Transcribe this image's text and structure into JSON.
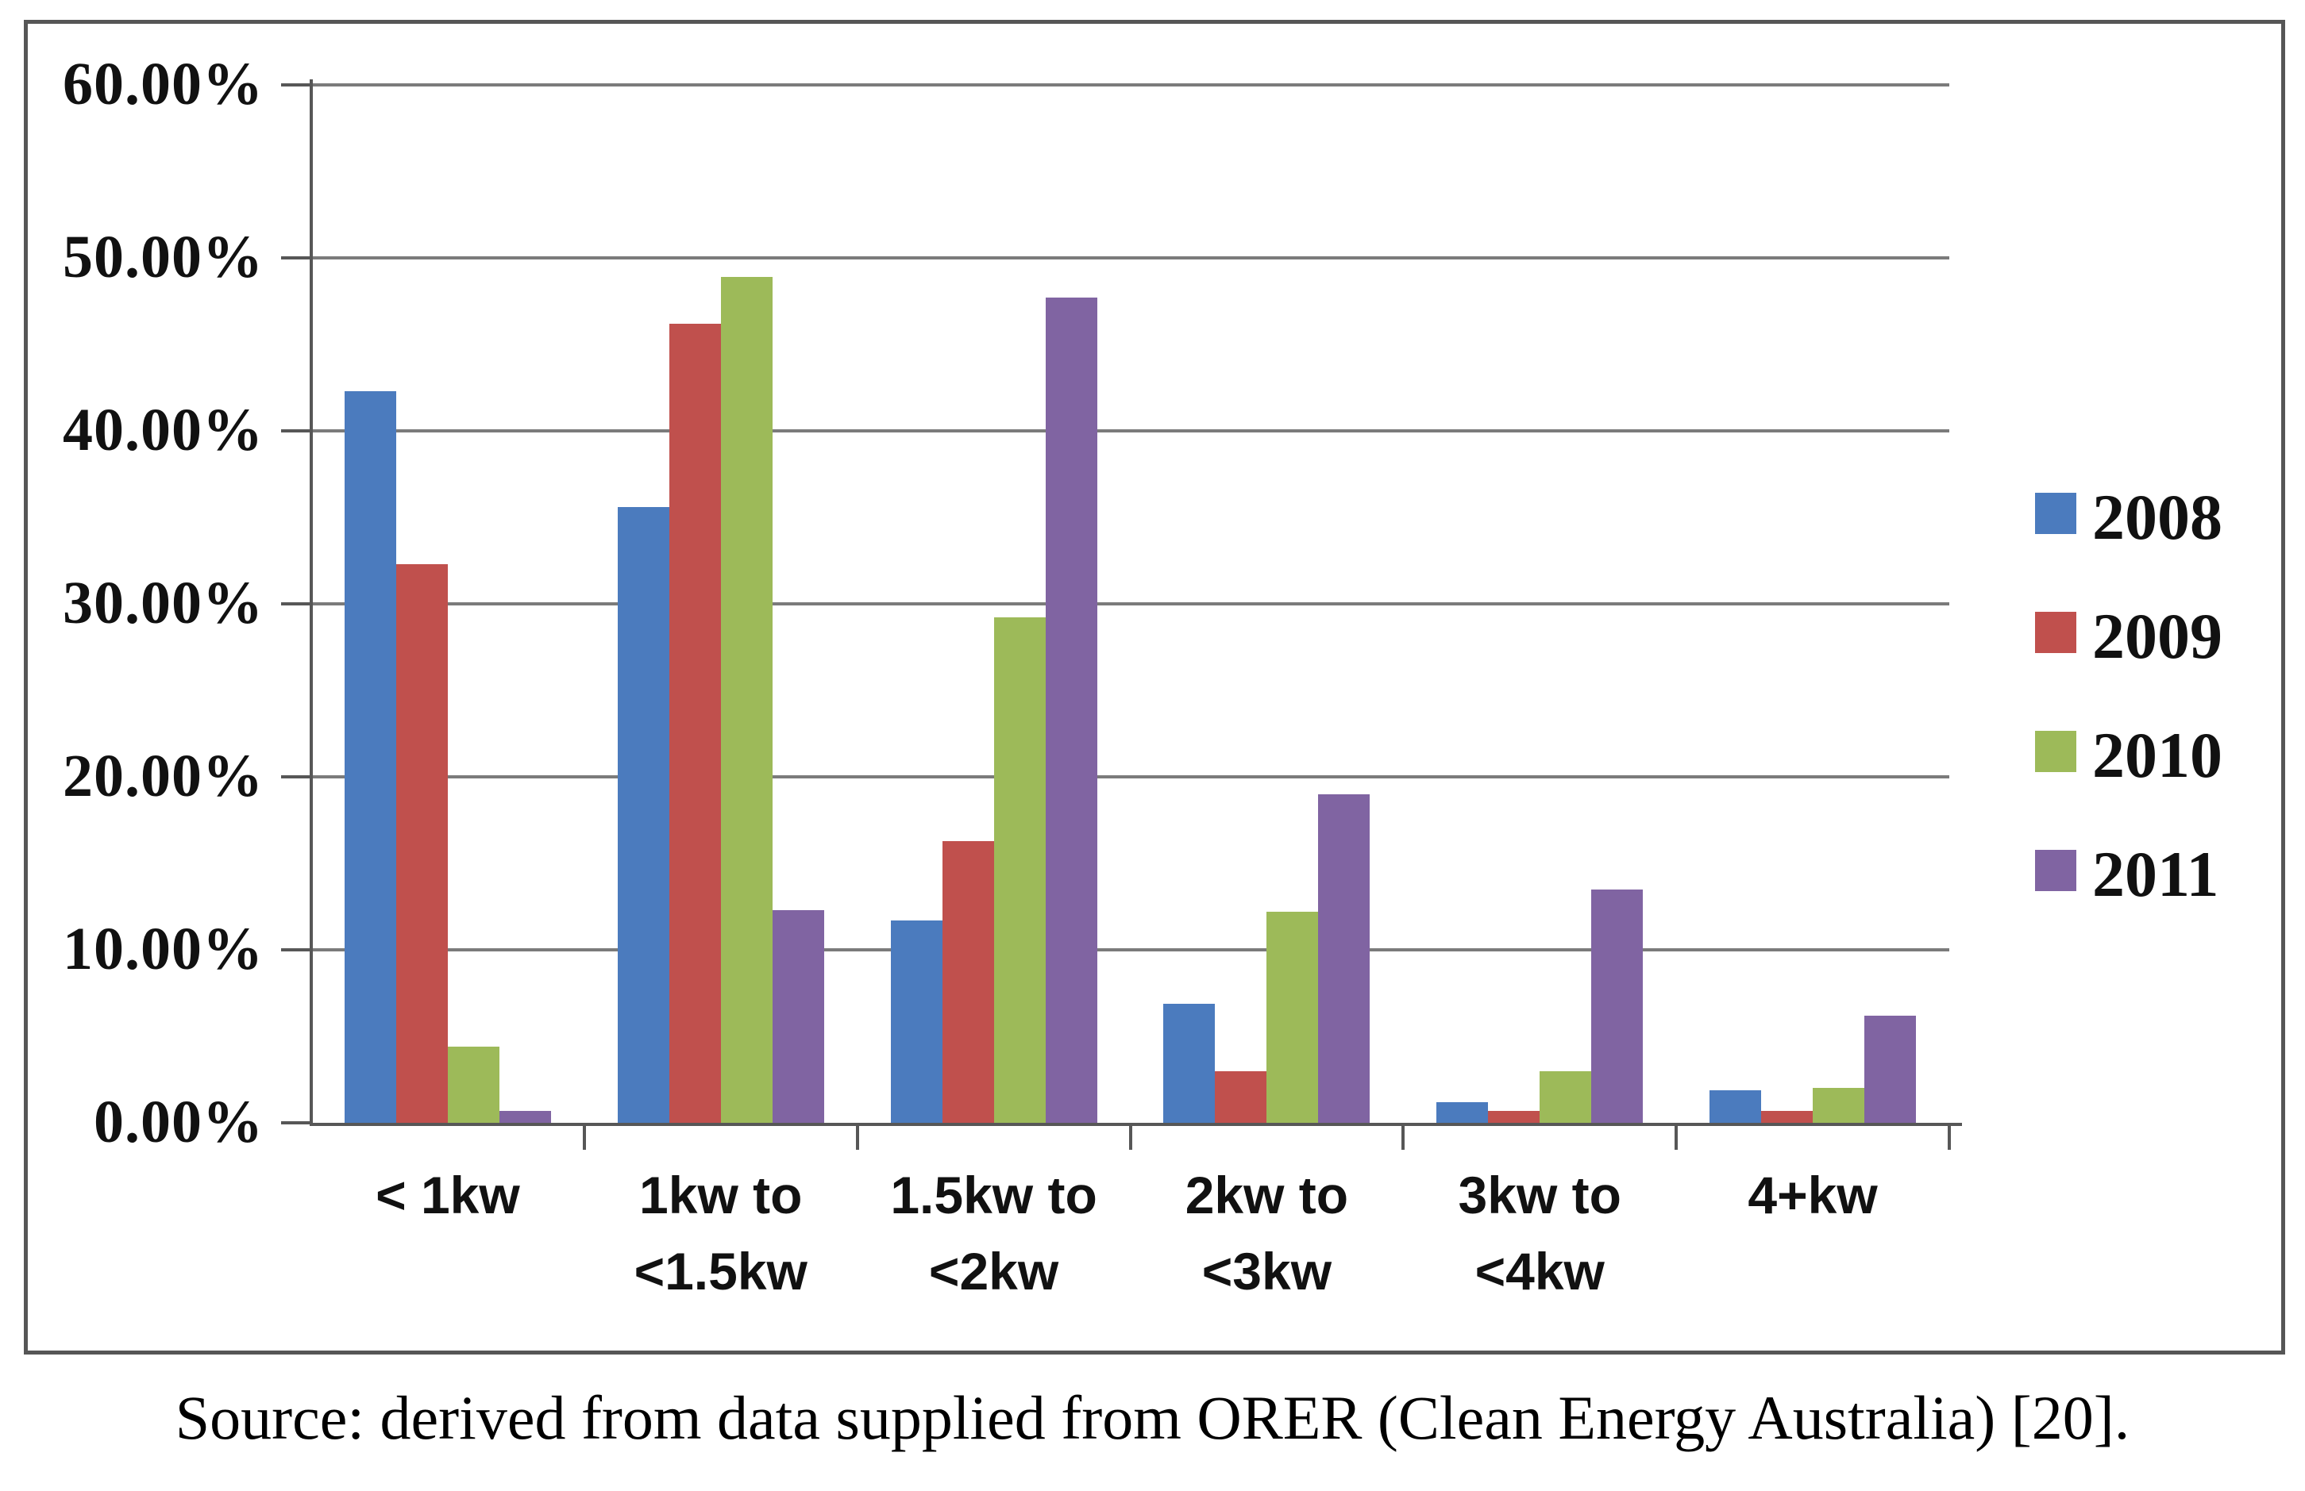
{
  "figure": {
    "source_note": "Source: derived from data supplied from ORER (Clean Energy Australia) [20]."
  },
  "chart_data": {
    "type": "bar",
    "title": "",
    "xlabel": "",
    "ylabel": "",
    "categories": [
      "< 1kw",
      "1kw to <1.5kw",
      "1.5kw to <2kw",
      "2kw to <3kw",
      "3kw to <4kw",
      "4+kw"
    ],
    "category_label_lines": [
      [
        "< 1kw"
      ],
      [
        "1kw  to",
        "<1.5kw"
      ],
      [
        "1.5kw to",
        "<2kw"
      ],
      [
        "2kw to",
        "<3kw"
      ],
      [
        "3kw to",
        "<4kw"
      ],
      [
        "4+kw"
      ]
    ],
    "series": [
      {
        "name": "2008",
        "color": "#4b7bbe",
        "values": [
          42.3,
          35.6,
          11.7,
          6.9,
          1.2,
          1.9
        ]
      },
      {
        "name": "2009",
        "color": "#c0504d",
        "values": [
          32.3,
          46.2,
          16.3,
          3.0,
          0.7,
          0.7
        ]
      },
      {
        "name": "2010",
        "color": "#9dba59",
        "values": [
          4.4,
          48.9,
          29.2,
          12.2,
          3.0,
          2.0
        ]
      },
      {
        "name": "2011",
        "color": "#8064a2",
        "values": [
          0.7,
          12.3,
          47.7,
          19.0,
          13.5,
          6.2
        ]
      }
    ],
    "y_axis": {
      "min": 0,
      "max": 60,
      "step": 10,
      "unit": "%"
    },
    "y_tick_labels": [
      "0.00%",
      "10.00%",
      "20.00%",
      "30.00%",
      "40.00%",
      "50.00%",
      "60.00%"
    ],
    "legend_position": "right",
    "grid": true
  }
}
